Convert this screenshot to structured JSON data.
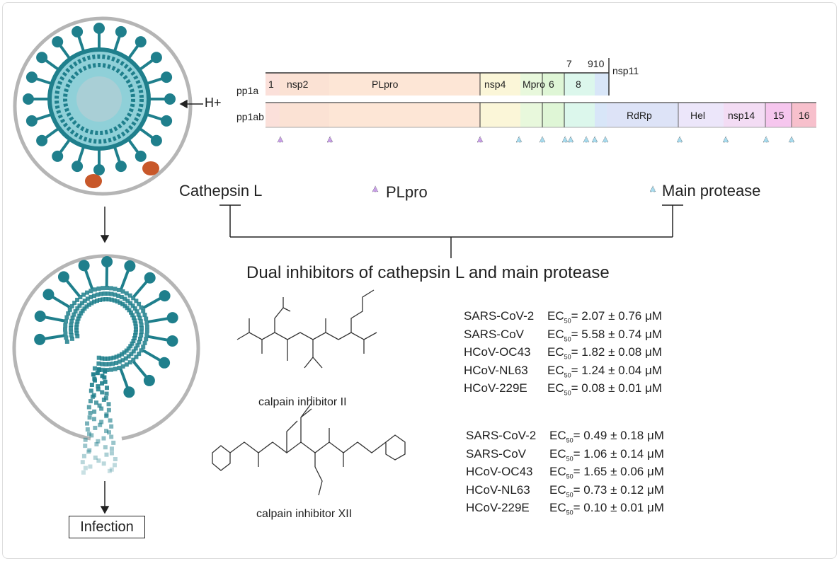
{
  "polyprotein": {
    "pp1a_label": "pp1a",
    "pp1ab_label": "pp1ab",
    "pp1a_segments": [
      "1",
      "nsp2",
      "PLpro",
      "nsp4",
      "Mpro",
      "6",
      "8"
    ],
    "top_labels": [
      "7",
      "910",
      "nsp11"
    ],
    "pp1ab_segments": [
      "RdRp",
      "Hel",
      "nsp14",
      "15",
      "16"
    ]
  },
  "proton_label": "H+",
  "legend": {
    "cathepsin": "Cathepsin L",
    "plpro": "PLpro",
    "mpro": "Main protease",
    "plpro_color": "#c9a0e8",
    "mpro_color": "#a8dcef"
  },
  "title": "Dual inhibitors of cathepsin L and main protease",
  "infection_label": "Infection",
  "compounds": [
    {
      "name": "calpain inhibitor II",
      "rows": [
        {
          "virus": "SARS-CoV-2",
          "value": "= 2.07 ± 0.76 μM"
        },
        {
          "virus": "SARS-CoV",
          "value": "= 5.58 ± 0.74 μM"
        },
        {
          "virus": "HCoV-OC43",
          "value": "= 1.82 ± 0.08 μM"
        },
        {
          "virus": "HCoV-NL63",
          "value": "= 1.24 ± 0.04 μM"
        },
        {
          "virus": "HCoV-229E",
          "value": "= 0.08 ± 0.01 μM"
        }
      ]
    },
    {
      "name": "calpain inhibitor XII",
      "rows": [
        {
          "virus": "SARS-CoV-2",
          "value": "= 0.49 ± 0.18 μM"
        },
        {
          "virus": "SARS-CoV",
          "value": "= 1.06 ± 0.14 μM"
        },
        {
          "virus": "HCoV-OC43",
          "value": "= 1.65 ± 0.06 μM"
        },
        {
          "virus": "HCoV-NL63",
          "value": "= 0.73 ± 0.12 μM"
        },
        {
          "virus": "HCoV-229E",
          "value": "= 0.10 ± 0.01 μM"
        }
      ]
    }
  ],
  "ec_label": "EC",
  "ec_sub": "50",
  "colors": {
    "virus": "#1f7f8c",
    "membrane": "#b5b5b5",
    "receptor": "#c8582a"
  }
}
